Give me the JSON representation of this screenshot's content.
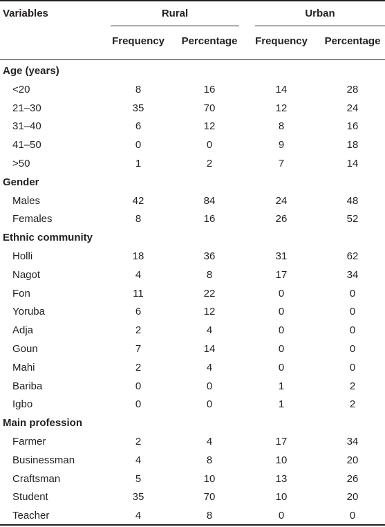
{
  "header": {
    "variables": "Variables",
    "rural": "Rural",
    "urban": "Urban",
    "frequency": "Frequency",
    "percentage": "Percentage"
  },
  "sections": [
    {
      "title": "Age (years)",
      "rows": [
        {
          "label": "<20",
          "rf": "8",
          "rp": "16",
          "uf": "14",
          "up": "28"
        },
        {
          "label": "21–30",
          "rf": "35",
          "rp": "70",
          "uf": "12",
          "up": "24"
        },
        {
          "label": "31–40",
          "rf": "6",
          "rp": "12",
          "uf": "8",
          "up": "16"
        },
        {
          "label": "41–50",
          "rf": "0",
          "rp": "0",
          "uf": "9",
          "up": "18"
        },
        {
          "label": ">50",
          "rf": "1",
          "rp": "2",
          "uf": "7",
          "up": "14"
        }
      ]
    },
    {
      "title": "Gender",
      "rows": [
        {
          "label": "Males",
          "rf": "42",
          "rp": "84",
          "uf": "24",
          "up": "48"
        },
        {
          "label": "Females",
          "rf": "8",
          "rp": "16",
          "uf": "26",
          "up": "52"
        }
      ]
    },
    {
      "title": "Ethnic community",
      "rows": [
        {
          "label": "Holli",
          "rf": "18",
          "rp": "36",
          "uf": "31",
          "up": "62"
        },
        {
          "label": "Nagot",
          "rf": "4",
          "rp": "8",
          "uf": "17",
          "up": "34"
        },
        {
          "label": "Fon",
          "rf": "11",
          "rp": "22",
          "uf": "0",
          "up": "0"
        },
        {
          "label": "Yoruba",
          "rf": "6",
          "rp": "12",
          "uf": "0",
          "up": "0"
        },
        {
          "label": "Adja",
          "rf": "2",
          "rp": "4",
          "uf": "0",
          "up": "0"
        },
        {
          "label": "Goun",
          "rf": "7",
          "rp": "14",
          "uf": "0",
          "up": "0"
        },
        {
          "label": "Mahi",
          "rf": "2",
          "rp": "4",
          "uf": "0",
          "up": "0"
        },
        {
          "label": "Bariba",
          "rf": "0",
          "rp": "0",
          "uf": "1",
          "up": "2"
        },
        {
          "label": "Igbo",
          "rf": "0",
          "rp": "0",
          "uf": "1",
          "up": "2"
        }
      ]
    },
    {
      "title": "Main profession",
      "rows": [
        {
          "label": "Farmer",
          "rf": "2",
          "rp": "4",
          "uf": "17",
          "up": "34"
        },
        {
          "label": "Businessman",
          "rf": "4",
          "rp": "8",
          "uf": "10",
          "up": "20"
        },
        {
          "label": "Craftsman",
          "rf": "5",
          "rp": "10",
          "uf": "13",
          "up": "26"
        },
        {
          "label": "Student",
          "rf": "35",
          "rp": "70",
          "uf": "10",
          "up": "20"
        },
        {
          "label": "Teacher",
          "rf": "4",
          "rp": "8",
          "uf": "0",
          "up": "0"
        }
      ]
    }
  ]
}
